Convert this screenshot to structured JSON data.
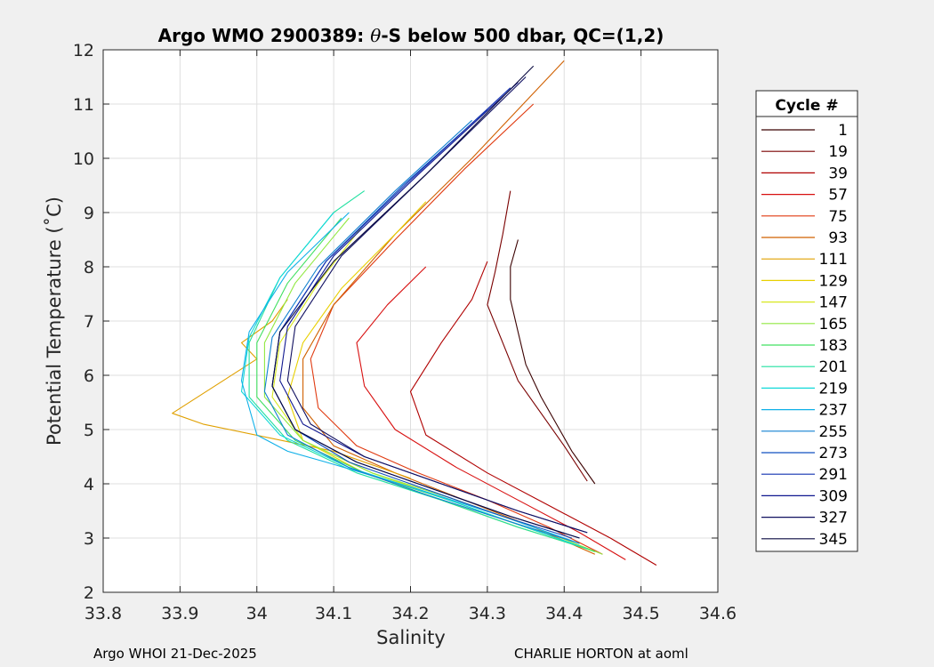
{
  "chart_data": {
    "type": "line",
    "title": "Argo WMO 2900389: θ-S below 500 dbar,  QC=(1,2)",
    "title_prefix": "Argo WMO 2900389: ",
    "title_theta": "θ",
    "title_suffix": "-S below 500 dbar,  QC=(1,2)",
    "xlabel": "Salinity",
    "ylabel": "Potential Temperature (˚C)",
    "xlim": [
      33.8,
      34.6
    ],
    "ylim": [
      2,
      12
    ],
    "xticks": [
      33.8,
      33.9,
      34.0,
      34.1,
      34.2,
      34.3,
      34.4,
      34.5,
      34.6
    ],
    "xtick_labels": [
      "33.8",
      "33.9",
      "34",
      "34.1",
      "34.2",
      "34.3",
      "34.4",
      "34.5",
      "34.6"
    ],
    "yticks": [
      2,
      3,
      4,
      5,
      6,
      7,
      8,
      9,
      10,
      11,
      12
    ],
    "ytick_labels": [
      "2",
      "3",
      "4",
      "5",
      "6",
      "7",
      "8",
      "9",
      "10",
      "11",
      "12"
    ],
    "grid": true,
    "legend": {
      "title": "Cycle #",
      "placement": "right-outside",
      "entries": [
        {
          "label": "1",
          "color": "#3a0000"
        },
        {
          "label": "19",
          "color": "#7a0000"
        },
        {
          "label": "39",
          "color": "#b00000"
        },
        {
          "label": "57",
          "color": "#d81010"
        },
        {
          "label": "75",
          "color": "#e03a10"
        },
        {
          "label": "93",
          "color": "#d06000"
        },
        {
          "label": "111",
          "color": "#e0a000"
        },
        {
          "label": "129",
          "color": "#e8d000"
        },
        {
          "label": "147",
          "color": "#d8e820"
        },
        {
          "label": "165",
          "color": "#90e840"
        },
        {
          "label": "183",
          "color": "#40e060"
        },
        {
          "label": "201",
          "color": "#20e0a0"
        },
        {
          "label": "219",
          "color": "#10d8d8"
        },
        {
          "label": "237",
          "color": "#10b0e8"
        },
        {
          "label": "255",
          "color": "#1080d0"
        },
        {
          "label": "273",
          "color": "#1050c0"
        },
        {
          "label": "291",
          "color": "#1030b0"
        },
        {
          "label": "309",
          "color": "#101890"
        },
        {
          "label": "327",
          "color": "#101060"
        },
        {
          "label": "345",
          "color": "#0a0a40"
        }
      ]
    },
    "series": [
      {
        "name": "1",
        "color": "#3a0000",
        "x": [
          34.44,
          34.41,
          34.39,
          34.37,
          34.35,
          34.34,
          34.33,
          34.33,
          34.34
        ],
        "y": [
          4.0,
          4.6,
          5.1,
          5.6,
          6.2,
          6.8,
          7.4,
          8.0,
          8.5
        ]
      },
      {
        "name": "19",
        "color": "#7a0000",
        "x": [
          34.43,
          34.4,
          34.37,
          34.34,
          34.32,
          34.3,
          34.31,
          34.32,
          34.33
        ],
        "y": [
          4.05,
          4.7,
          5.3,
          5.9,
          6.6,
          7.3,
          7.9,
          8.6,
          9.4
        ]
      },
      {
        "name": "39",
        "color": "#b00000",
        "x": [
          34.52,
          34.46,
          34.38,
          34.3,
          34.22,
          34.2,
          34.24,
          34.28,
          34.3
        ],
        "y": [
          2.5,
          3.0,
          3.6,
          4.2,
          4.9,
          5.7,
          6.6,
          7.4,
          8.1
        ]
      },
      {
        "name": "57",
        "color": "#d81010",
        "x": [
          34.48,
          34.42,
          34.34,
          34.26,
          34.18,
          34.14,
          34.13,
          34.17,
          34.22
        ],
        "y": [
          2.6,
          3.1,
          3.7,
          4.3,
          5.0,
          5.8,
          6.6,
          7.3,
          8.0
        ]
      },
      {
        "name": "75",
        "color": "#e03a10",
        "x": [
          34.45,
          34.38,
          34.3,
          34.21,
          34.13,
          34.08,
          34.07,
          34.1,
          34.18,
          34.27,
          34.36
        ],
        "y": [
          2.7,
          3.2,
          3.7,
          4.2,
          4.7,
          5.4,
          6.3,
          7.3,
          8.5,
          9.8,
          11.0
        ]
      },
      {
        "name": "93",
        "color": "#d06000",
        "x": [
          34.44,
          34.36,
          34.27,
          34.18,
          34.1,
          34.06,
          34.06,
          34.1,
          34.18,
          34.28,
          34.4
        ],
        "y": [
          2.7,
          3.2,
          3.7,
          4.2,
          4.7,
          5.4,
          6.3,
          7.3,
          8.6,
          10.0,
          11.8
        ]
      },
      {
        "name": "111",
        "color": "#e0a000",
        "x": [
          34.2,
          34.1,
          33.93,
          33.89,
          34.0,
          33.98,
          34.02,
          34.04
        ],
        "y": [
          4.1,
          4.6,
          5.1,
          5.3,
          6.3,
          6.6,
          7.0,
          7.4
        ]
      },
      {
        "name": "129",
        "color": "#e8d000",
        "x": [
          34.43,
          34.34,
          34.24,
          34.14,
          34.06,
          34.04,
          34.06,
          34.11,
          34.18,
          34.22
        ],
        "y": [
          2.8,
          3.2,
          3.7,
          4.2,
          4.8,
          5.6,
          6.6,
          7.6,
          8.6,
          9.2
        ]
      },
      {
        "name": "147",
        "color": "#d8e820",
        "x": [
          34.44,
          34.35,
          34.25,
          34.15,
          34.06,
          34.02,
          34.03,
          34.08,
          34.14
        ],
        "y": [
          2.75,
          3.2,
          3.7,
          4.2,
          4.8,
          5.6,
          6.6,
          7.7,
          8.8
        ]
      },
      {
        "name": "165",
        "color": "#90e840",
        "x": [
          34.45,
          34.36,
          34.26,
          34.15,
          34.06,
          34.01,
          34.01,
          34.05,
          34.12
        ],
        "y": [
          2.7,
          3.2,
          3.7,
          4.2,
          4.8,
          5.6,
          6.6,
          7.7,
          8.9
        ]
      },
      {
        "name": "183",
        "color": "#40e060",
        "x": [
          34.44,
          34.35,
          34.25,
          34.14,
          34.05,
          34.0,
          34.0,
          34.04,
          34.11
        ],
        "y": [
          2.75,
          3.2,
          3.7,
          4.2,
          4.8,
          5.6,
          6.6,
          7.7,
          8.9
        ]
      },
      {
        "name": "201",
        "color": "#20e0a0",
        "x": [
          34.43,
          34.34,
          34.24,
          34.13,
          34.04,
          33.99,
          33.99,
          34.03,
          34.1,
          34.14
        ],
        "y": [
          2.8,
          3.2,
          3.7,
          4.2,
          4.8,
          5.6,
          6.6,
          7.8,
          9.0,
          9.4
        ]
      },
      {
        "name": "219",
        "color": "#10d8d8",
        "x": [
          34.42,
          34.33,
          34.23,
          34.12,
          34.03,
          33.98,
          33.99,
          34.03,
          34.1
        ],
        "y": [
          2.85,
          3.3,
          3.8,
          4.3,
          4.9,
          5.7,
          6.7,
          7.8,
          9.0
        ]
      },
      {
        "name": "237",
        "color": "#10b0e8",
        "x": [
          34.42,
          34.32,
          34.21,
          34.09,
          34.04,
          34.0,
          33.98,
          33.99,
          34.04,
          34.12
        ],
        "y": [
          2.9,
          3.4,
          3.9,
          4.4,
          4.6,
          4.9,
          5.9,
          6.8,
          7.9,
          9.0
        ]
      },
      {
        "name": "255",
        "color": "#1080d0",
        "x": [
          34.42,
          34.33,
          34.22,
          34.12,
          34.04,
          34.01,
          34.02,
          34.08,
          34.18,
          34.28
        ],
        "y": [
          2.9,
          3.3,
          3.8,
          4.3,
          4.9,
          5.7,
          6.7,
          8.0,
          9.4,
          10.7
        ]
      },
      {
        "name": "273",
        "color": "#1050c0",
        "x": [
          34.41,
          34.32,
          34.22,
          34.12,
          34.05,
          34.02,
          34.03,
          34.09,
          34.19,
          34.3
        ],
        "y": [
          3.0,
          3.4,
          3.9,
          4.4,
          5.0,
          5.8,
          6.8,
          8.1,
          9.5,
          10.9
        ]
      },
      {
        "name": "291",
        "color": "#1030b0",
        "x": [
          34.42,
          34.33,
          34.23,
          34.13,
          34.05,
          34.02,
          34.03,
          34.09,
          34.2,
          34.33
        ],
        "y": [
          3.0,
          3.4,
          3.9,
          4.4,
          5.0,
          5.8,
          6.8,
          8.1,
          9.6,
          11.3
        ]
      },
      {
        "name": "309",
        "color": "#101890",
        "x": [
          34.43,
          34.34,
          34.24,
          34.14,
          34.06,
          34.03,
          34.04,
          34.1,
          34.21,
          34.34
        ],
        "y": [
          3.1,
          3.5,
          4.0,
          4.5,
          5.1,
          5.9,
          6.9,
          8.2,
          9.7,
          11.4
        ]
      },
      {
        "name": "327",
        "color": "#101060",
        "x": [
          34.43,
          34.34,
          34.24,
          34.14,
          34.07,
          34.04,
          34.05,
          34.11,
          34.22,
          34.35
        ],
        "y": [
          3.1,
          3.5,
          4.0,
          4.5,
          5.1,
          5.9,
          6.9,
          8.2,
          9.7,
          11.5
        ]
      },
      {
        "name": "345",
        "color": "#0a0a40",
        "x": [
          34.42,
          34.33,
          34.23,
          34.13,
          34.05,
          34.02,
          34.03,
          34.1,
          34.22,
          34.36
        ],
        "y": [
          3.0,
          3.4,
          3.9,
          4.4,
          5.0,
          5.8,
          6.8,
          8.1,
          9.7,
          11.7
        ]
      }
    ]
  },
  "footer": {
    "left": "Argo WHOI 21-Dec-2025",
    "right": "CHARLIE HORTON at aoml"
  }
}
